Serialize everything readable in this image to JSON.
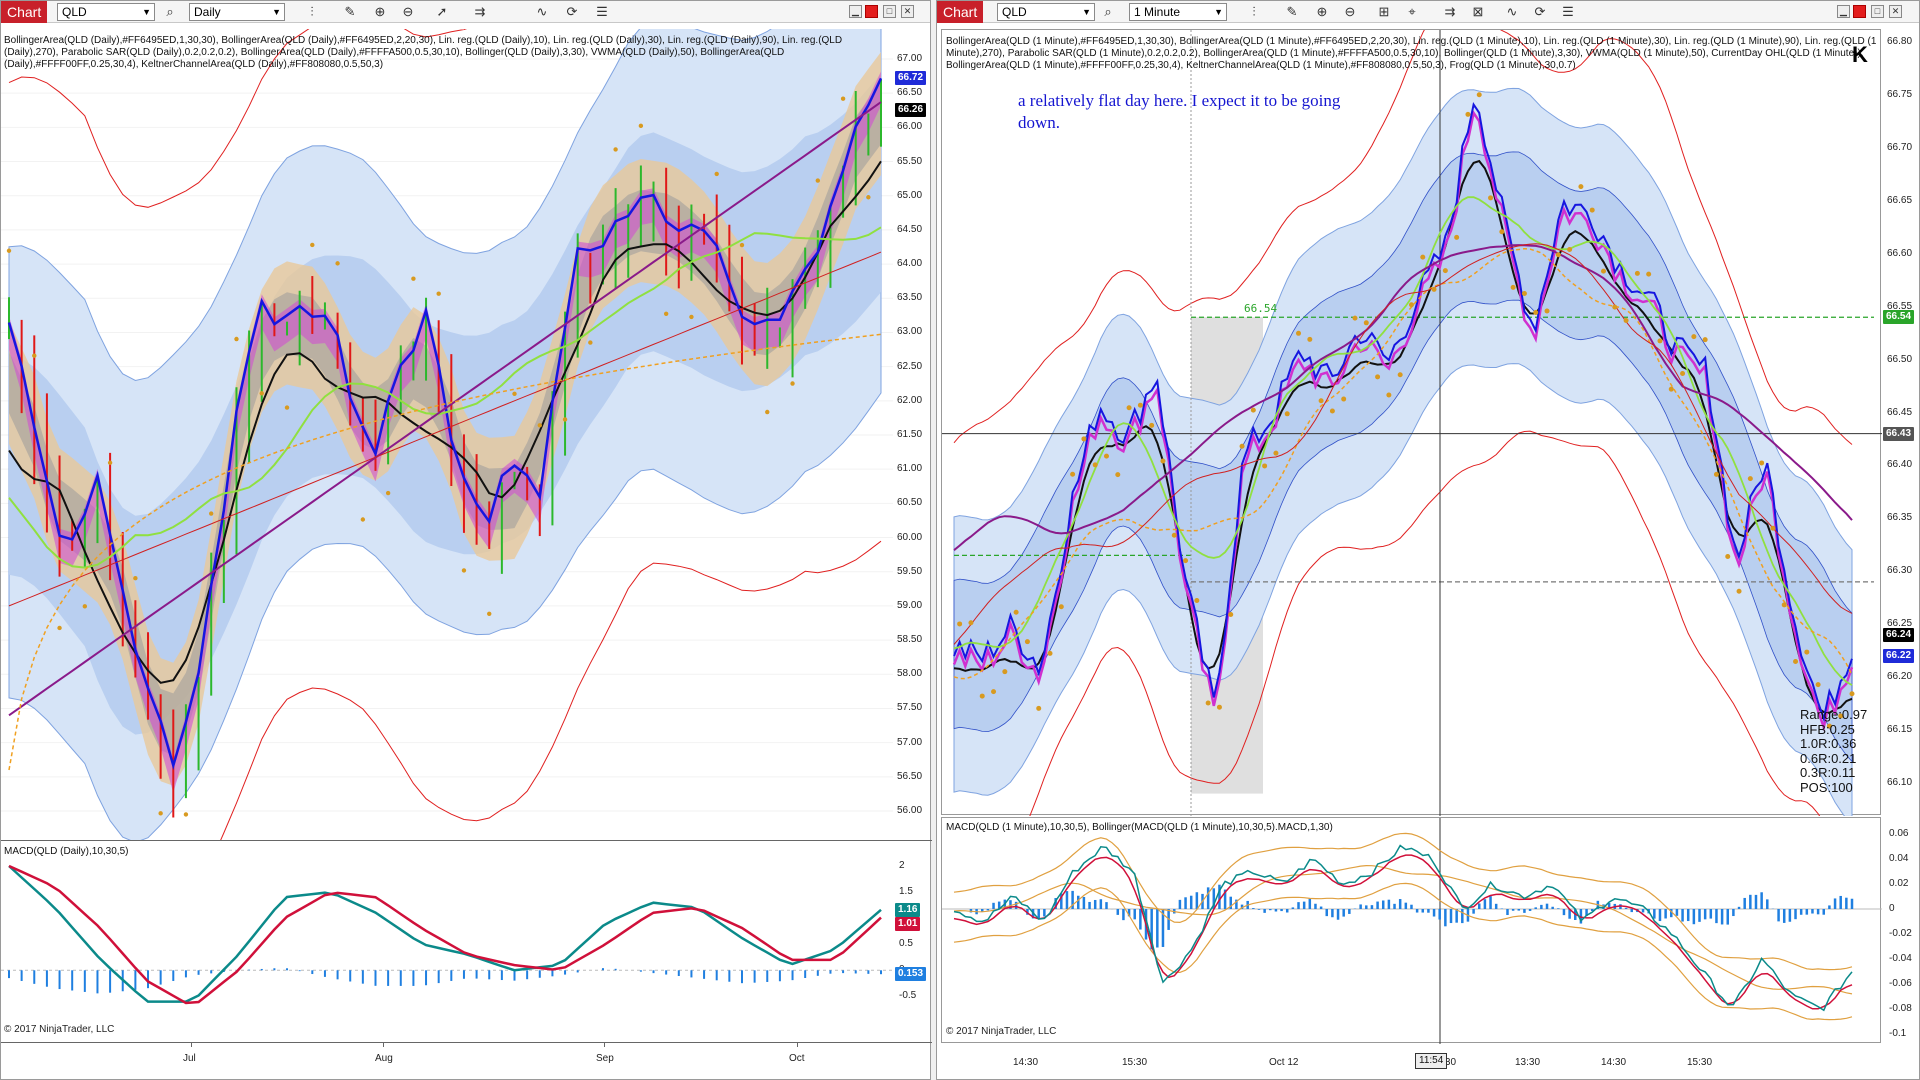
{
  "left": {
    "chart_tab": "Chart",
    "symbol": "QLD",
    "interval": "Daily",
    "indicator_legend": "BollingerArea(QLD (Daily),#FF6495ED,1,30,30), BollingerArea(QLD (Daily),#FF6495ED,2,20,30), Lin. reg.(QLD (Daily),10), Lin. reg.(QLD (Daily),30), Lin. reg.(QLD (Daily),90), Lin. reg.(QLD (Daily),270), Parabolic SAR(QLD (Daily),0.2,0.2,0.2), BollingerArea(QLD (Daily),#FFFFA500,0.5,30,10), Bollinger(QLD (Daily),3,30), VWMA(QLD (Daily),50), BollingerArea(QLD (Daily),#FFFF00FF,0.25,30,4), KeltnerChannelArea(QLD (Daily),#FF808080,0.5,50,3)",
    "price_ticks": [
      "67.00",
      "66.50",
      "66.00",
      "65.50",
      "65.00",
      "64.50",
      "64.00",
      "63.50",
      "63.00",
      "62.50",
      "62.00",
      "61.50",
      "61.00",
      "60.50",
      "60.00",
      "59.50",
      "59.00",
      "58.50",
      "58.00",
      "57.50",
      "57.00",
      "56.50",
      "56.00"
    ],
    "price_tags": [
      {
        "text": "66.72",
        "color": "#1f2bd8"
      },
      {
        "text": "66.26",
        "color": "#000000"
      }
    ],
    "macd_legend": "MACD(QLD (Daily),10,30,5)",
    "macd_ticks": [
      "2",
      "1.5",
      "1",
      "0.5",
      "0",
      "-0.5"
    ],
    "macd_tags": [
      {
        "text": "1.16",
        "color": "#0b8a8a"
      },
      {
        "text": "1.01",
        "color": "#d0103a"
      },
      {
        "text": "0.153",
        "color": "#1f7fe0"
      }
    ],
    "date_ticks": [
      "Jul",
      "Aug",
      "Sep",
      "Oct"
    ],
    "copyright": "© 2017 NinjaTrader, LLC"
  },
  "right": {
    "chart_tab": "Chart",
    "symbol": "QLD",
    "interval": "1 Minute",
    "indicator_legend": "BollingerArea(QLD (1 Minute),#FF6495ED,1,30,30), BollingerArea(QLD (1 Minute),#FF6495ED,2,20,30), Lin. reg.(QLD (1 Minute),10), Lin. reg.(QLD (1 Minute),30), Lin. reg.(QLD (1 Minute),90), Lin. reg.(QLD (1 Minute),270), Parabolic SAR(QLD (1 Minute),0.2,0.2,0.2), BollingerArea(QLD (1 Minute),#FFFFA500,0.5,30,10), Bollinger(QLD (1 Minute),3,30), VWMA(QLD (1 Minute),50), CurrentDay OHL(QLD (1 Minute)), BollingerArea(QLD (1 Minute),#FFFF00FF,0.25,30,4), KeltnerChannelArea(QLD (1 Minute),#FF808080,0.5,50,3), Frog(QLD (1 Minute),30,0.7)",
    "annotation": "a relatively flat day here. I expect it to be going down.",
    "level_label": "66.54",
    "price_ticks": [
      "66.80",
      "66.75",
      "66.70",
      "66.65",
      "66.60",
      "66.55",
      "66.50",
      "66.45",
      "66.40",
      "66.35",
      "66.30",
      "66.25",
      "66.20",
      "66.15",
      "66.10"
    ],
    "price_tags": [
      {
        "text": "66.54",
        "color": "#2aa52a"
      },
      {
        "text": "66.43",
        "color": "#555555"
      },
      {
        "text": "66.24",
        "color": "#000000"
      },
      {
        "text": "66.22",
        "color": "#1f2bd8"
      }
    ],
    "stats": [
      "Range:0.97",
      "HFB:0.25",
      "1.0R:0.36",
      "0.6R:0.21",
      "0.3R:0.11",
      "POS:100"
    ],
    "macd_legend": "MACD(QLD (1 Minute),10,30,5), Bollinger(MACD(QLD (1 Minute),10,30,5).MACD,1,30)",
    "macd_ticks": [
      "0.06",
      "0.04",
      "0.02",
      "0",
      "-0.02",
      "-0.04",
      "-0.06",
      "-0.08",
      "-0.1"
    ],
    "time_ticks": [
      "14:30",
      "15:30",
      "Oct 12",
      "12:30",
      "13:30",
      "14:30",
      "15:30"
    ],
    "cursor_time": "11:54",
    "copyright": "© 2017 NinjaTrader, LLC"
  }
}
